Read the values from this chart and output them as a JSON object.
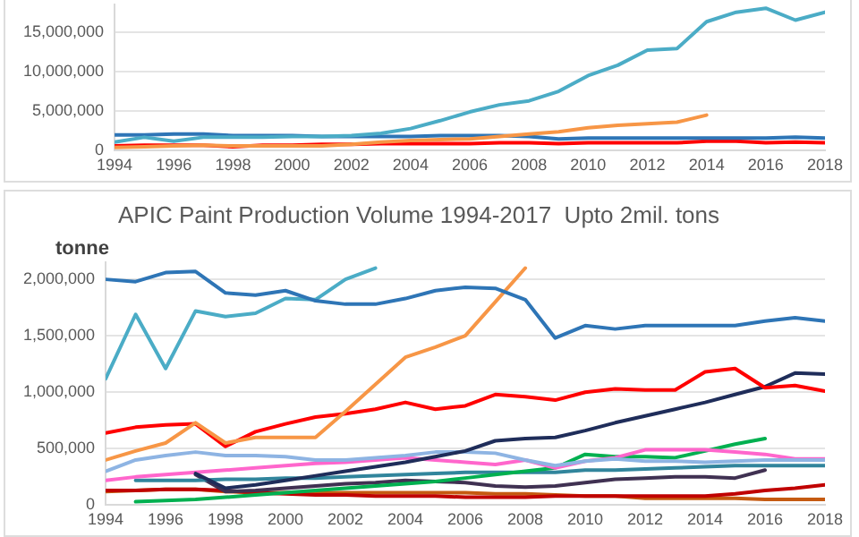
{
  "chart_data": [
    {
      "type": "line",
      "x": [
        1994,
        1995,
        1996,
        1997,
        1998,
        1999,
        2000,
        2001,
        2002,
        2003,
        2004,
        2005,
        2006,
        2007,
        2008,
        2009,
        2010,
        2011,
        2012,
        2013,
        2014,
        2015,
        2016,
        2017,
        2018
      ],
      "xlim": [
        1994,
        2018
      ],
      "xticks": [
        1994,
        1996,
        1998,
        2000,
        2002,
        2004,
        2006,
        2008,
        2010,
        2012,
        2014,
        2016,
        2018
      ],
      "ylim": [
        0,
        18500000
      ],
      "yticks": [
        0,
        {
          "value": 5000000,
          "label": "5,000,000"
        },
        {
          "value": 10000000,
          "label": "10,000,000"
        },
        {
          "value": 15000000,
          "label": "15,000,000"
        }
      ],
      "grid": "y",
      "legend": false,
      "marker": "none",
      "line_style": "solid",
      "series": [
        {
          "color": "#4bacc6",
          "values": [
            1100000,
            1700000,
            1200000,
            1700000,
            1700000,
            1700000,
            1800000,
            1800000,
            1900000,
            2200000,
            2800000,
            3800000,
            4900000,
            5800000,
            6300000,
            7500000,
            9500000,
            10800000,
            12700000,
            12900000,
            16300000,
            17500000,
            18000000,
            16500000,
            17500000
          ]
        },
        {
          "color": "#f79646",
          "values": [
            400000,
            500000,
            600000,
            700000,
            600000,
            600000,
            600000,
            600000,
            800000,
            1100000,
            1300000,
            1400000,
            1500000,
            1800000,
            2100000,
            2400000,
            2900000,
            3200000,
            3400000,
            3600000,
            4500000,
            null,
            null,
            null,
            null
          ]
        },
        {
          "color": "#2e75b6",
          "values": [
            2000000,
            2000000,
            2100000,
            2100000,
            1900000,
            1900000,
            1900000,
            1800000,
            1800000,
            1800000,
            1800000,
            1900000,
            1900000,
            1900000,
            1800000,
            1500000,
            1600000,
            1600000,
            1600000,
            1600000,
            1600000,
            1600000,
            1600000,
            1700000,
            1600000
          ]
        },
        {
          "color": "#ff0000",
          "values": [
            600000,
            700000,
            700000,
            700000,
            500000,
            700000,
            700000,
            800000,
            800000,
            900000,
            900000,
            900000,
            900000,
            1000000,
            1000000,
            900000,
            1000000,
            1000000,
            1000000,
            1000000,
            1200000,
            1200000,
            1000000,
            1100000,
            1000000
          ]
        }
      ]
    },
    {
      "type": "line",
      "title": "APIC Paint Production Volume 1994-2017  Upto 2mil. tons",
      "ylabel": "tonne",
      "x": [
        1994,
        1995,
        1996,
        1997,
        1998,
        1999,
        2000,
        2001,
        2002,
        2003,
        2004,
        2005,
        2006,
        2007,
        2008,
        2009,
        2010,
        2011,
        2012,
        2013,
        2014,
        2015,
        2016,
        2017,
        2018
      ],
      "xlim": [
        1994,
        2018
      ],
      "xticks": [
        1994,
        1996,
        1998,
        2000,
        2002,
        2004,
        2006,
        2008,
        2010,
        2012,
        2014,
        2016,
        2018
      ],
      "ylim": [
        0,
        2150000
      ],
      "yticks": [
        0,
        {
          "value": 500000,
          "label": "500,000"
        },
        {
          "value": 1000000,
          "label": "1,000,000"
        },
        {
          "value": 1500000,
          "label": "1,500,000"
        },
        {
          "value": 2000000,
          "label": "2,000,000"
        }
      ],
      "grid": "y",
      "legend": false,
      "marker": "none",
      "line_style": "solid",
      "series": [
        {
          "color": "#2e75b6",
          "values": [
            2000000,
            1980000,
            2060000,
            2070000,
            1880000,
            1860000,
            1900000,
            1810000,
            1780000,
            1780000,
            1830000,
            1900000,
            1930000,
            1920000,
            1820000,
            1480000,
            1590000,
            1560000,
            1590000,
            1590000,
            1590000,
            1590000,
            1630000,
            1660000,
            1630000
          ]
        },
        {
          "color": "#4bacc6",
          "values": [
            1120000,
            1690000,
            1210000,
            1720000,
            1670000,
            1700000,
            1830000,
            1820000,
            2000000,
            2100000,
            null,
            null,
            null,
            null,
            null,
            null,
            null,
            null,
            null,
            null,
            null,
            null,
            null,
            null,
            null
          ]
        },
        {
          "color": "#f79646",
          "values": [
            400000,
            480000,
            550000,
            730000,
            550000,
            600000,
            600000,
            600000,
            830000,
            1070000,
            1310000,
            1400000,
            1500000,
            1800000,
            2100000,
            null,
            null,
            null,
            null,
            null,
            null,
            null,
            null,
            null,
            null
          ]
        },
        {
          "color": "#ff0000",
          "values": [
            640000,
            690000,
            710000,
            720000,
            520000,
            650000,
            720000,
            780000,
            810000,
            850000,
            910000,
            850000,
            880000,
            980000,
            960000,
            930000,
            1000000,
            1030000,
            1020000,
            1020000,
            1180000,
            1210000,
            1040000,
            1060000,
            1010000
          ]
        },
        {
          "color": "#1f2d5a",
          "values": [
            null,
            null,
            null,
            280000,
            150000,
            180000,
            220000,
            260000,
            300000,
            340000,
            380000,
            430000,
            480000,
            570000,
            590000,
            600000,
            660000,
            730000,
            790000,
            850000,
            910000,
            980000,
            1050000,
            1170000,
            1160000
          ]
        },
        {
          "color": "#8eb4e3",
          "values": [
            300000,
            400000,
            440000,
            470000,
            440000,
            440000,
            430000,
            400000,
            400000,
            420000,
            440000,
            470000,
            470000,
            460000,
            400000,
            350000,
            390000,
            410000,
            390000,
            390000,
            380000,
            390000,
            400000,
            400000,
            400000
          ]
        },
        {
          "color": "#ff66cc",
          "values": [
            220000,
            250000,
            270000,
            290000,
            310000,
            330000,
            350000,
            370000,
            380000,
            400000,
            420000,
            400000,
            380000,
            360000,
            400000,
            330000,
            390000,
            420000,
            490000,
            490000,
            490000,
            470000,
            450000,
            410000,
            410000
          ]
        },
        {
          "color": "#00b050",
          "values": [
            null,
            30000,
            40000,
            50000,
            70000,
            90000,
            110000,
            130000,
            150000,
            170000,
            190000,
            210000,
            240000,
            270000,
            300000,
            330000,
            450000,
            430000,
            430000,
            420000,
            480000,
            540000,
            590000,
            null,
            null
          ]
        },
        {
          "color": "#31859c",
          "values": [
            null,
            220000,
            220000,
            220000,
            230000,
            230000,
            240000,
            240000,
            250000,
            260000,
            270000,
            280000,
            290000,
            290000,
            290000,
            290000,
            310000,
            310000,
            320000,
            330000,
            340000,
            350000,
            350000,
            350000,
            350000
          ]
        },
        {
          "color": "#403152",
          "values": [
            null,
            null,
            null,
            270000,
            120000,
            130000,
            150000,
            170000,
            190000,
            200000,
            220000,
            210000,
            200000,
            170000,
            160000,
            170000,
            200000,
            230000,
            240000,
            250000,
            250000,
            240000,
            310000,
            null,
            null
          ]
        },
        {
          "color": "#c00000",
          "values": [
            130000,
            130000,
            140000,
            140000,
            130000,
            110000,
            100000,
            90000,
            90000,
            80000,
            80000,
            80000,
            70000,
            70000,
            70000,
            80000,
            80000,
            80000,
            80000,
            80000,
            80000,
            100000,
            130000,
            150000,
            180000
          ]
        },
        {
          "color": "#c55a11",
          "values": [
            120000,
            130000,
            140000,
            140000,
            120000,
            110000,
            110000,
            110000,
            110000,
            110000,
            110000,
            110000,
            110000,
            100000,
            100000,
            90000,
            80000,
            80000,
            60000,
            60000,
            60000,
            60000,
            50000,
            50000,
            50000
          ]
        }
      ]
    }
  ]
}
